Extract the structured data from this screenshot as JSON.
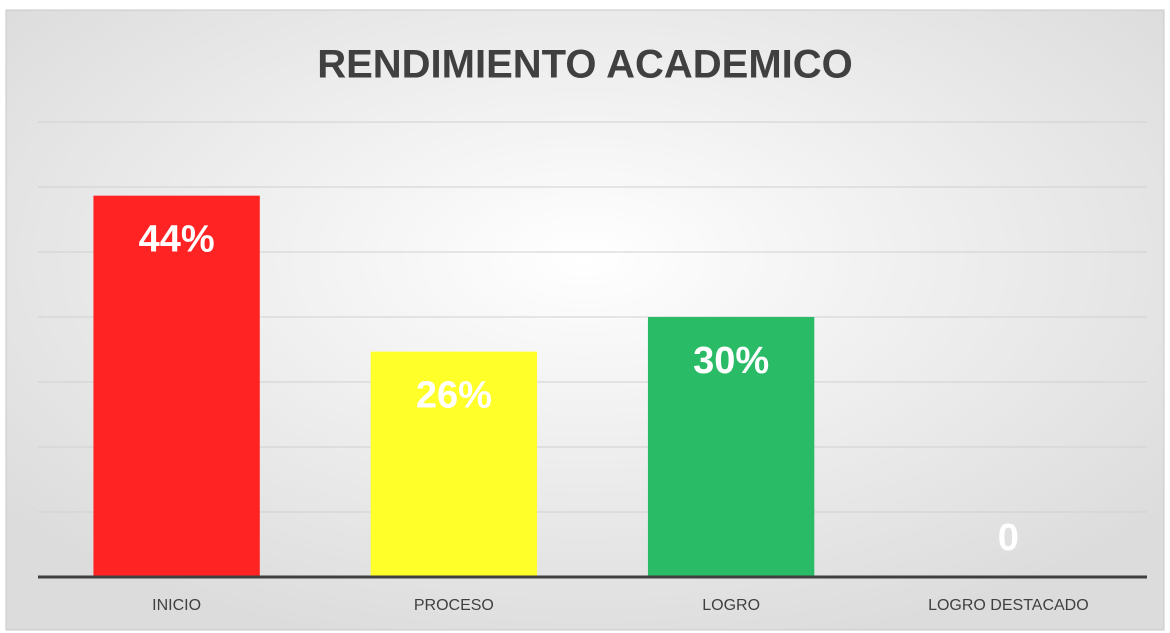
{
  "chart_data": {
    "type": "bar",
    "title": "RENDIMIENTO ACADEMICO",
    "categories": [
      "INICIO",
      "PROCESO",
      "LOGRO",
      "LOGRO DESTACADO"
    ],
    "values": [
      44,
      26,
      30,
      0
    ],
    "value_labels": [
      "44%",
      "26%",
      "30%",
      "0"
    ],
    "colors": [
      "#ff2323",
      "#ffff2a",
      "#2abb66",
      "#2abb66"
    ],
    "ylim": [
      0,
      52.5
    ],
    "yticks": [
      0,
      7.5,
      15,
      22.5,
      30,
      37.5,
      45,
      52.5
    ],
    "grid": true
  }
}
